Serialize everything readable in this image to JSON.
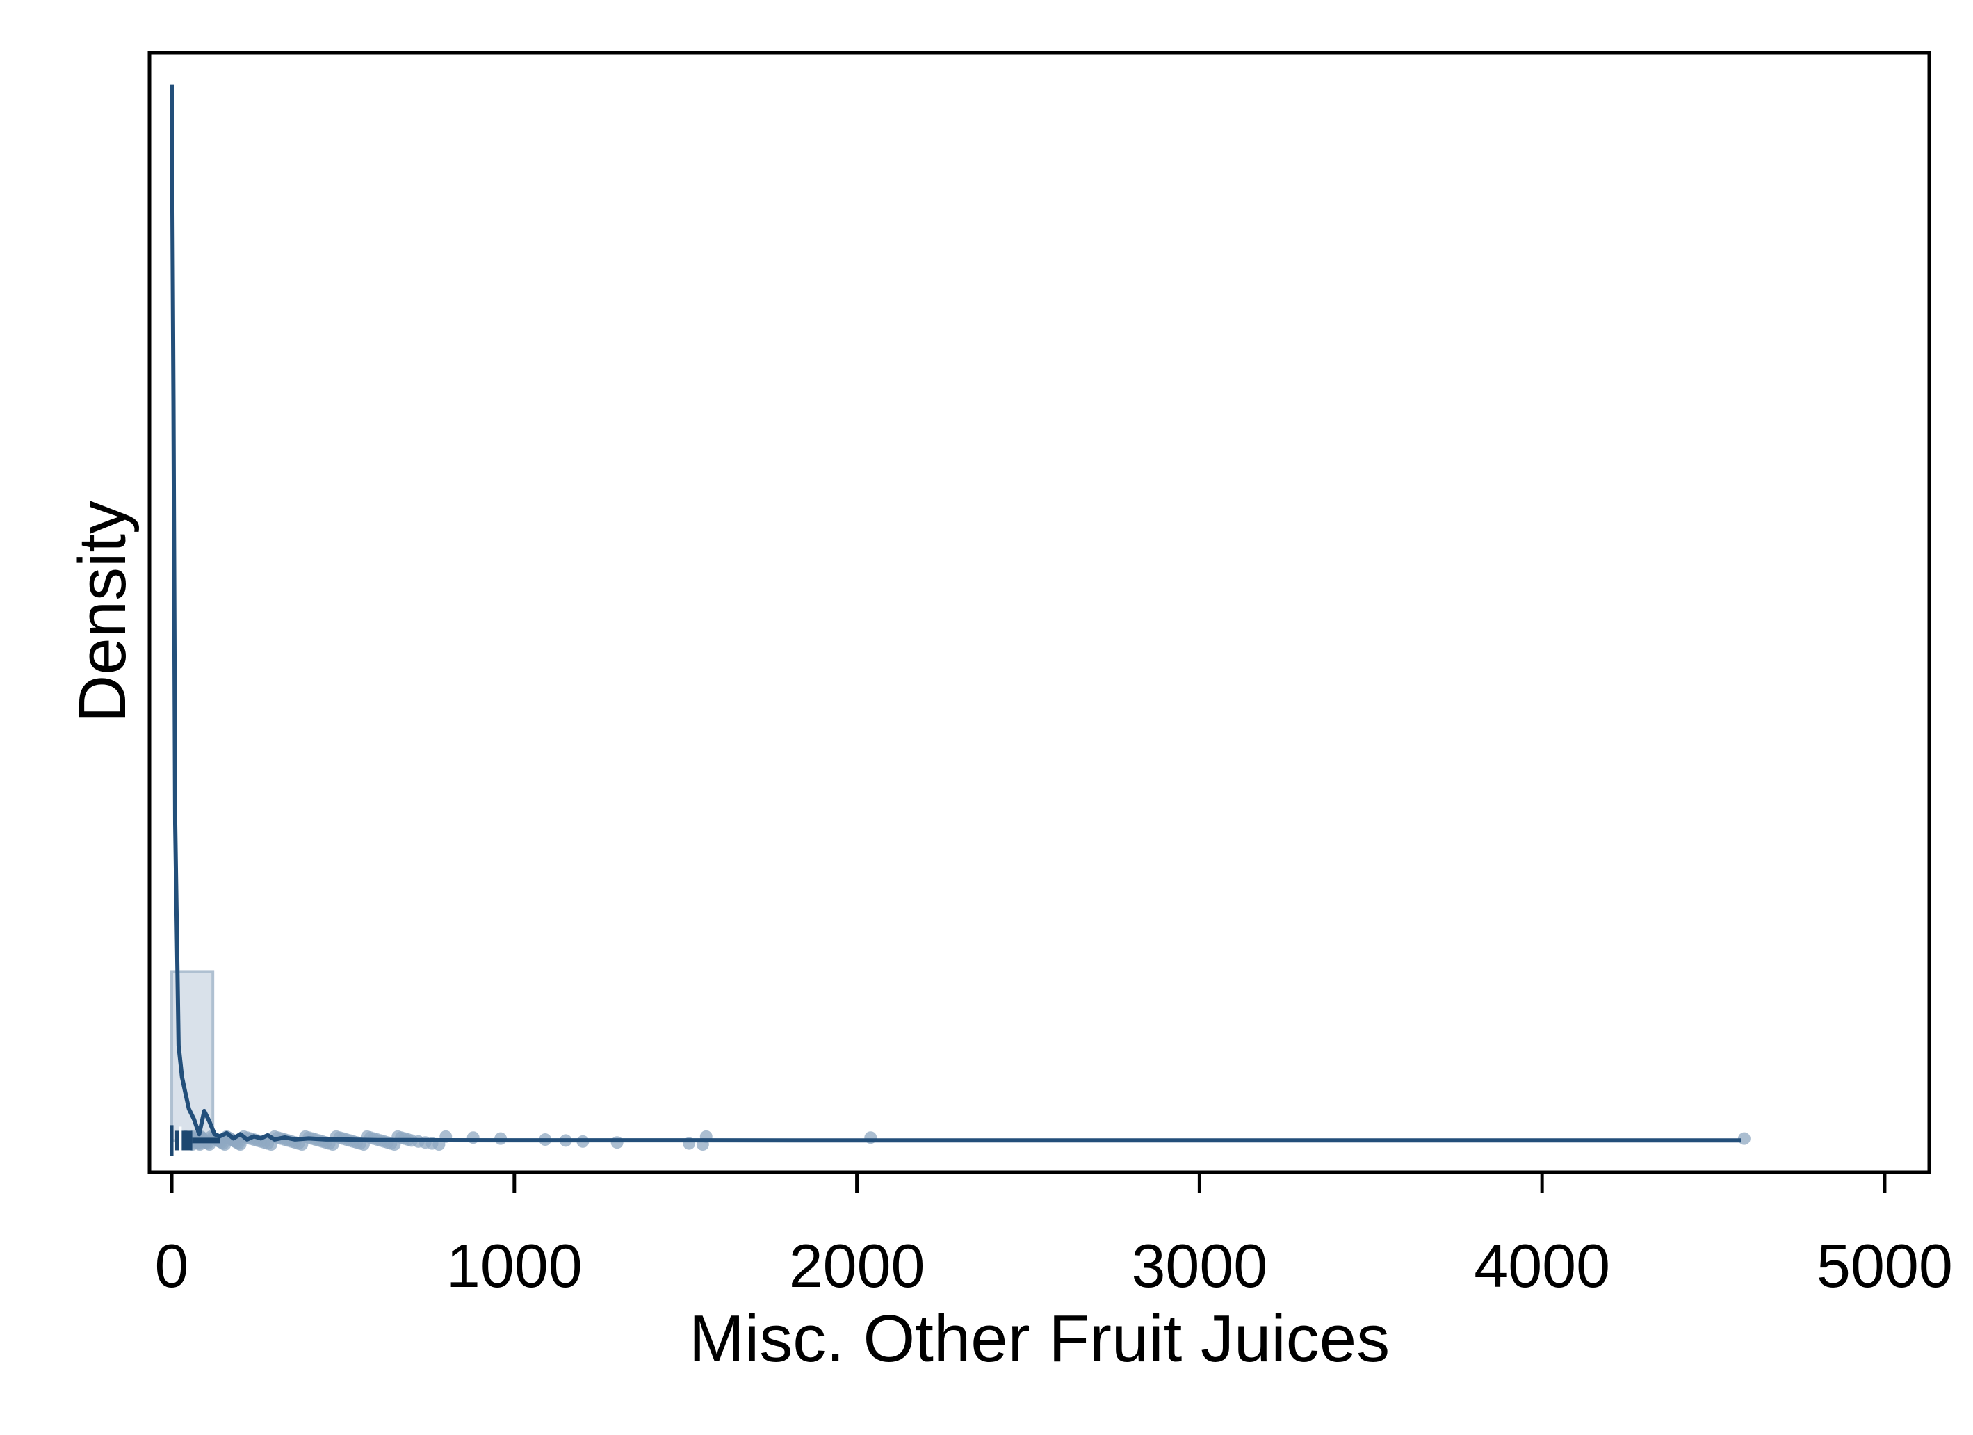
{
  "chart_data": {
    "type": "line",
    "title": "",
    "xlabel": "Misc. Other Fruit Juices",
    "ylabel": "Density",
    "xlim": [
      -65,
      5130
    ],
    "ylim": [
      -0.03,
      1.03
    ],
    "x_ticks": [
      0,
      1000,
      2000,
      3000,
      4000,
      5000
    ],
    "x_tick_labels": [
      "0",
      "1000",
      "2000",
      "3000",
      "4000",
      "5000"
    ],
    "y_ticks_labeled": false,
    "grid": false,
    "legend": "none",
    "colors": {
      "line": "#234F7A",
      "points": "#8FA8C2",
      "histogram_fill": "#D9E1EA",
      "histogram_edge": "#AFC0D1",
      "box": "#1D4770",
      "frame": "#000000"
    },
    "histogram": {
      "bins": [
        {
          "x0": 0,
          "x1": 120,
          "density": 0.16
        }
      ]
    },
    "density_curve": {
      "x": [
        0,
        5,
        10,
        20,
        30,
        40,
        50,
        65,
        80,
        95,
        110,
        125,
        140,
        160,
        180,
        200,
        220,
        240,
        260,
        280,
        300,
        330,
        360,
        400,
        450,
        500,
        600,
        700,
        800,
        1000,
        1500,
        2000,
        2500,
        3000,
        3500,
        4000,
        4580
      ],
      "y": [
        1.0,
        0.7,
        0.3,
        0.09,
        0.06,
        0.045,
        0.03,
        0.02,
        0.006,
        0.028,
        0.018,
        0.006,
        0.004,
        0.007,
        0.002,
        0.006,
        0.001,
        0.004,
        0.002,
        0.005,
        0.001,
        0.003,
        0.001,
        0.002,
        0.001,
        0.001,
        0.0005,
        0.0005,
        0.0003,
        0.0002,
        0.0002,
        0.0001,
        0.0001,
        0.0001,
        0.0001,
        0.0001,
        0.0001
      ]
    },
    "boxplot": {
      "min": 0,
      "q1": 10,
      "median": 25,
      "q3": 60,
      "whisker_high": 140
    },
    "points": [
      40,
      42,
      45,
      48,
      50,
      52,
      55,
      58,
      60,
      62,
      65,
      68,
      70,
      72,
      75,
      78,
      80,
      82,
      85,
      88,
      90,
      92,
      95,
      98,
      100,
      105,
      110,
      115,
      120,
      125,
      130,
      135,
      140,
      145,
      150,
      155,
      160,
      165,
      170,
      175,
      180,
      185,
      190,
      195,
      200,
      210,
      220,
      230,
      240,
      250,
      260,
      270,
      280,
      290,
      300,
      310,
      320,
      330,
      340,
      350,
      360,
      370,
      380,
      390,
      400,
      410,
      420,
      430,
      440,
      450,
      460,
      470,
      480,
      490,
      500,
      510,
      520,
      530,
      540,
      550,
      560,
      570,
      580,
      590,
      600,
      610,
      620,
      630,
      640,
      650,
      660,
      670,
      680,
      690,
      700,
      720,
      740,
      760,
      780,
      800,
      880,
      960,
      1090,
      1150,
      1200,
      1300,
      1510,
      1550,
      1560,
      2040,
      4590
    ]
  }
}
